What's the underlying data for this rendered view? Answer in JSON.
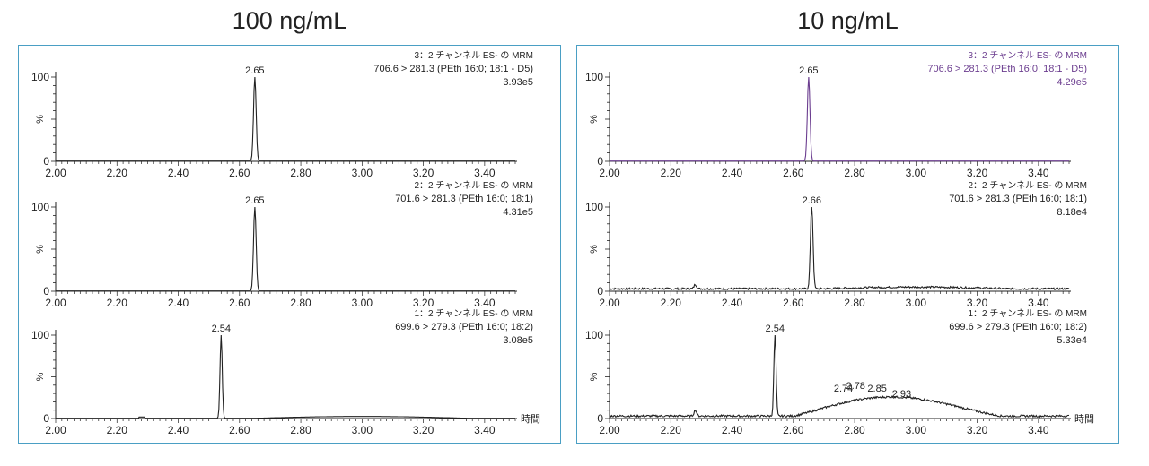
{
  "panels": [
    {
      "title": "100 ng/mL",
      "chromatograms": [
        {
          "header": "3：2 チャンネル ES- の MRM",
          "transition": "706.6 > 281.3 (PEth 16:0; 18:1 - D5)",
          "intensity": "3.93e5",
          "header_color": "#222222",
          "peaks": [
            {
              "rt": 2.65,
              "label": "2.65",
              "height": 100,
              "width": 0.006
            }
          ],
          "baseline": "flat"
        },
        {
          "header": "2：2 チャンネル ES- の MRM",
          "transition": "701.6 > 281.3 (PEth 16:0; 18:1)",
          "intensity": "4.31e5",
          "header_color": "#222222",
          "peaks": [
            {
              "rt": 2.65,
              "label": "2.65",
              "height": 100,
              "width": 0.006
            }
          ],
          "baseline": "flat"
        },
        {
          "header": "1：2 チャンネル ES- の MRM",
          "transition": "699.6 > 279.3 (PEth 16:0; 18:2)",
          "intensity": "3.08e5",
          "header_color": "#222222",
          "peaks": [
            {
              "rt": 2.54,
              "label": "2.54",
              "height": 100,
              "width": 0.005
            }
          ],
          "baseline": "hump_small"
        }
      ]
    },
    {
      "title": "10 ng/mL",
      "chromatograms": [
        {
          "header": "3：2 チャンネル ES- の MRM",
          "transition": "706.6 > 281.3 (PEth 16:0; 18:1 - D5)",
          "intensity": "4.29e5",
          "header_color": "#6b3d8f",
          "peaks": [
            {
              "rt": 2.65,
              "label": "2.65",
              "height": 100,
              "width": 0.006
            }
          ],
          "baseline": "flat",
          "line_color": "#6b3d8f"
        },
        {
          "header": "2：2 チャンネル ES- の MRM",
          "transition": "701.6 > 281.3 (PEth 16:0; 18:1)",
          "intensity": "8.18e4",
          "header_color": "#222222",
          "peaks": [
            {
              "rt": 2.66,
              "label": "2.66",
              "height": 100,
              "width": 0.006
            }
          ],
          "baseline": "noisy_low"
        },
        {
          "header": "1：2 チャンネル ES- の MRM",
          "transition": "699.6 > 279.3 (PEth 16:0; 18:2)",
          "intensity": "5.33e4",
          "header_color": "#222222",
          "peaks": [
            {
              "rt": 2.54,
              "label": "2.54",
              "height": 100,
              "width": 0.005
            }
          ],
          "hump_labels": [
            {
              "rt": 2.74,
              "label": "2.74"
            },
            {
              "rt": 2.78,
              "label": "2.78"
            },
            {
              "rt": 2.85,
              "label": "2.85"
            },
            {
              "rt": 2.93,
              "label": "2.93"
            }
          ],
          "baseline": "hump_large"
        }
      ]
    }
  ],
  "axis": {
    "x_ticks": [
      "2.00",
      "2.20",
      "2.40",
      "2.60",
      "2.80",
      "3.00",
      "3.20",
      "3.40"
    ],
    "y_top": "100",
    "y_mid": "%",
    "y_bottom": "0",
    "x_unit": "時間"
  },
  "chart_data": [
    {
      "type": "line",
      "title": "100 ng/mL",
      "xlim": [
        2.0,
        3.5
      ],
      "ylim": [
        0,
        100
      ],
      "ylabel": "%",
      "xlabel": "時間",
      "series": [
        {
          "name": "706.6 > 281.3 (PEth 16:0; 18:1 - D5)",
          "peak_rt": 2.65,
          "max_intensity": "3.93e5"
        },
        {
          "name": "701.6 > 281.3 (PEth 16:0; 18:1)",
          "peak_rt": 2.65,
          "max_intensity": "4.31e5"
        },
        {
          "name": "699.6 > 279.3 (PEth 16:0; 18:2)",
          "peak_rt": 2.54,
          "max_intensity": "3.08e5"
        }
      ]
    },
    {
      "type": "line",
      "title": "10 ng/mL",
      "xlim": [
        2.0,
        3.5
      ],
      "ylim": [
        0,
        100
      ],
      "ylabel": "%",
      "xlabel": "時間",
      "series": [
        {
          "name": "706.6 > 281.3 (PEth 16:0; 18:1 - D5)",
          "peak_rt": 2.65,
          "max_intensity": "4.29e5"
        },
        {
          "name": "701.6 > 281.3 (PEth 16:0; 18:1)",
          "peak_rt": 2.66,
          "max_intensity": "8.18e4"
        },
        {
          "name": "699.6 > 279.3 (PEth 16:0; 18:2)",
          "peak_rt": 2.54,
          "max_intensity": "5.33e4",
          "minor_peaks_rt": [
            2.74,
            2.78,
            2.85,
            2.93
          ]
        }
      ]
    }
  ]
}
